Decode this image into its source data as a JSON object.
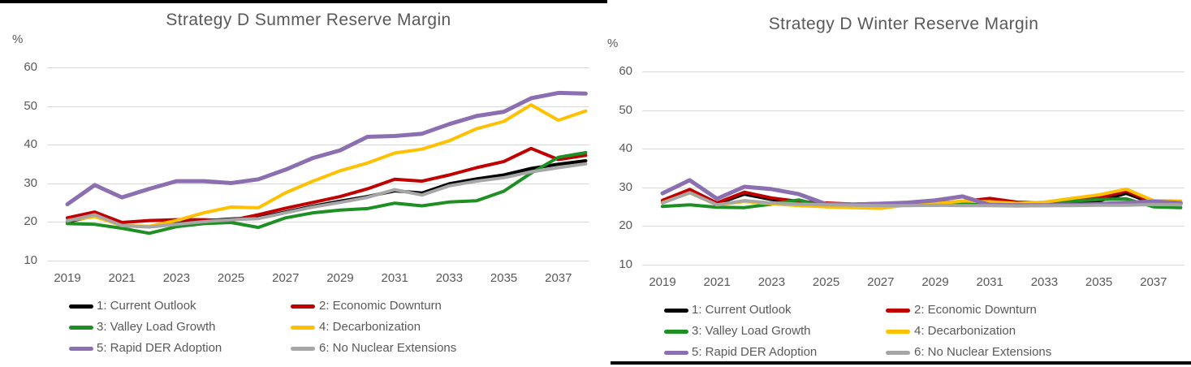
{
  "colors": {
    "background": "#ffffff",
    "gridline": "#d9d9d9",
    "axis_text": "#595959",
    "title_text": "#595959",
    "panel_border": "#000000"
  },
  "legend": {
    "entries": [
      {
        "label": "1: Current Outlook",
        "color": "#000000"
      },
      {
        "label": "2: Economic Downturn",
        "color": "#c00000"
      },
      {
        "label": "3: Valley Load Growth",
        "color": "#1e8f22"
      },
      {
        "label": "4: Decarbonization",
        "color": "#ffc000"
      },
      {
        "label": "5: Rapid DER Adoption",
        "color": "#8c6fb0"
      },
      {
        "label": "6: No Nuclear Extensions",
        "color": "#a6a6a6"
      }
    ]
  },
  "chart_data": [
    {
      "type": "line",
      "title": "Strategy D Summer Reserve Margin",
      "ylabel": "%",
      "xlabel": "",
      "grid": true,
      "legend_position": "bottom",
      "ylim": [
        10,
        60
      ],
      "y_ticks": [
        60,
        50,
        40,
        30,
        20,
        10
      ],
      "x": [
        2019,
        2020,
        2021,
        2022,
        2023,
        2024,
        2025,
        2026,
        2027,
        2028,
        2029,
        2030,
        2031,
        2032,
        2033,
        2034,
        2035,
        2036,
        2037,
        2038
      ],
      "x_tick_labels": [
        "2019",
        "2021",
        "2023",
        "2025",
        "2027",
        "2029",
        "2031",
        "2033",
        "2035",
        "2037"
      ],
      "series": [
        {
          "name": "1: Current Outlook",
          "color": "#000000",
          "width": 4,
          "values": [
            20,
            21.5,
            19,
            18.7,
            19.5,
            20.2,
            20.7,
            21,
            22.5,
            24,
            25.3,
            26.5,
            28,
            27.4,
            29.8,
            31.1,
            32.1,
            33.8,
            34.9,
            35.8
          ]
        },
        {
          "name": "2: Economic Downturn",
          "color": "#c00000",
          "width": 4,
          "values": [
            21,
            22.5,
            19.8,
            20.3,
            20.5,
            20.5,
            20.3,
            21.8,
            23.5,
            25,
            26.5,
            28.5,
            31,
            30.5,
            32.1,
            34,
            35.6,
            39,
            36.1,
            37.2
          ]
        },
        {
          "name": "3: Valley Load Growth",
          "color": "#1e8f22",
          "width": 4,
          "values": [
            19.5,
            19.3,
            18.3,
            17,
            18.7,
            19.5,
            19.8,
            18.5,
            21,
            22.3,
            23,
            23.4,
            24.8,
            24.1,
            25.1,
            25.4,
            27.9,
            32.6,
            36.7,
            37.9
          ]
        },
        {
          "name": "4: Decarbonization",
          "color": "#ffc000",
          "width": 4,
          "values": [
            20.3,
            21.3,
            19,
            18.8,
            20.3,
            22.3,
            23.8,
            23.6,
            27.5,
            30.5,
            33.2,
            35.2,
            37.8,
            38.8,
            41,
            44.1,
            46,
            50.3,
            46.3,
            48.7
          ]
        },
        {
          "name": "5: Rapid DER Adoption",
          "color": "#8c6fb0",
          "width": 5,
          "values": [
            24.5,
            29.5,
            26.3,
            28.5,
            30.5,
            30.5,
            30,
            31,
            33.5,
            36.5,
            38.5,
            42,
            42.2,
            42.8,
            45.3,
            47.4,
            48.5,
            52,
            53.4,
            53.2
          ]
        },
        {
          "name": "6: No Nuclear Extensions",
          "color": "#a6a6a6",
          "width": 4,
          "values": [
            20.2,
            21.8,
            19,
            18.6,
            19.3,
            20,
            20.5,
            20.8,
            22.3,
            23.8,
            25,
            26.3,
            28.3,
            26.9,
            29.3,
            30.5,
            31.4,
            32.9,
            34,
            35
          ]
        }
      ]
    },
    {
      "type": "line",
      "title": "Strategy D Winter Reserve Margin",
      "ylabel": "%",
      "xlabel": "",
      "grid": true,
      "legend_position": "bottom",
      "ylim": [
        10,
        60
      ],
      "y_ticks": [
        60,
        50,
        40,
        30,
        20,
        10
      ],
      "x": [
        2019,
        2020,
        2021,
        2022,
        2023,
        2024,
        2025,
        2026,
        2027,
        2028,
        2029,
        2030,
        2031,
        2032,
        2033,
        2034,
        2035,
        2036,
        2037,
        2038
      ],
      "x_tick_labels": [
        "2019",
        "2021",
        "2023",
        "2025",
        "2027",
        "2029",
        "2031",
        "2033",
        "2035",
        "2037"
      ],
      "series": [
        {
          "name": "1: Current Outlook",
          "color": "#000000",
          "width": 4,
          "values": [
            26.2,
            29,
            25.7,
            28.2,
            26.8,
            26,
            25.6,
            25.4,
            25.5,
            25.6,
            25.6,
            25.9,
            26.2,
            25.7,
            25.6,
            25.9,
            26.4,
            28.4,
            25.8,
            25.7
          ]
        },
        {
          "name": "2: Economic Downturn",
          "color": "#c00000",
          "width": 4,
          "values": [
            26.6,
            29.4,
            25.9,
            28.7,
            27.2,
            26.3,
            25.9,
            25.6,
            25.8,
            25.9,
            25.9,
            26.3,
            27.1,
            26.1,
            25.9,
            26.5,
            27.2,
            29,
            26,
            25.9
          ]
        },
        {
          "name": "3: Valley Load Growth",
          "color": "#1e8f22",
          "width": 4,
          "values": [
            25,
            25.4,
            24.8,
            24.7,
            25.6,
            26.7,
            24.9,
            25.2,
            25.8,
            25.4,
            25.3,
            25.5,
            25.4,
            25.3,
            25.6,
            26.4,
            26.8,
            27,
            24.9,
            24.7
          ]
        },
        {
          "name": "4: Decarbonization",
          "color": "#ffc000",
          "width": 4,
          "values": [
            26,
            28.5,
            25.4,
            26.3,
            25.7,
            25.2,
            24.9,
            24.7,
            24.5,
            25.4,
            25.7,
            26.4,
            26.2,
            25.8,
            26.1,
            27.1,
            28,
            29.5,
            26.5,
            26.4
          ]
        },
        {
          "name": "5: Rapid DER Adoption",
          "color": "#8c6fb0",
          "width": 5,
          "values": [
            28.4,
            31.8,
            27,
            30.1,
            29.5,
            28.2,
            25.6,
            25.5,
            25.7,
            26,
            26.6,
            27.6,
            25.4,
            25.3,
            25.3,
            25.4,
            25.6,
            26,
            26.3,
            25.9
          ]
        },
        {
          "name": "6: No Nuclear Extensions",
          "color": "#a6a6a6",
          "width": 4,
          "values": [
            25.9,
            28.6,
            25.4,
            26.5,
            25.9,
            25.6,
            25.4,
            25.3,
            25.2,
            25.2,
            25.3,
            25.2,
            25.2,
            25.1,
            25.2,
            25.2,
            25.3,
            25.3,
            25.5,
            25.4
          ]
        }
      ]
    }
  ]
}
